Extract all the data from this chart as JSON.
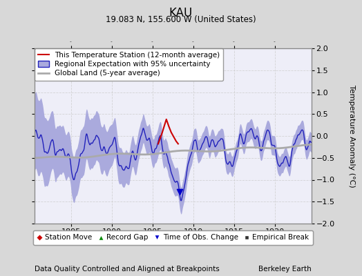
{
  "title": "KAU",
  "subtitle": "19.083 N, 155.600 W (United States)",
  "ylabel": "Temperature Anomaly (°C)",
  "xlabel_left": "Data Quality Controlled and Aligned at Breakpoints",
  "xlabel_right": "Berkeley Earth",
  "xlim": [
    1890.5,
    1924.5
  ],
  "ylim": [
    -2,
    2
  ],
  "yticks": [
    -2,
    -1.5,
    -1,
    -0.5,
    0,
    0.5,
    1,
    1.5,
    2
  ],
  "xticks": [
    1895,
    1900,
    1905,
    1910,
    1915,
    1920
  ],
  "bg_color": "#d8d8d8",
  "plot_bg_color": "#eeeef8",
  "regional_line_color": "#2222bb",
  "regional_fill_color": "#aaaadd",
  "global_land_color": "#aaaaaa",
  "station_color": "#cc0000",
  "legend1": [
    "This Temperature Station (12-month average)",
    "Regional Expectation with 95% uncertainty",
    "Global Land (5-year average)"
  ],
  "legend2": [
    "Station Move",
    "Record Gap",
    "Time of Obs. Change",
    "Empirical Break"
  ],
  "marker_colors": [
    "#cc0000",
    "#008800",
    "#0000cc",
    "#333333"
  ],
  "marker_shapes": [
    "D",
    "^",
    "v",
    "s"
  ],
  "time_obs_x": 1908.3,
  "time_obs_y": -1.28,
  "station_x_pts": [
    1905.7,
    1906.2,
    1906.7,
    1907.0,
    1907.3,
    1907.6,
    1907.9,
    1908.15
  ],
  "station_y_pts": [
    -0.18,
    0.08,
    0.38,
    0.22,
    0.08,
    -0.02,
    -0.12,
    -0.18
  ]
}
